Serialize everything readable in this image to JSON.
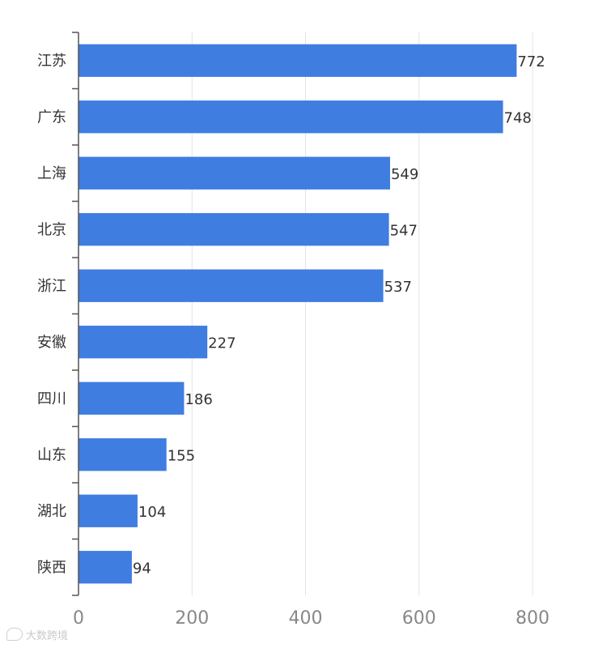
{
  "chart_data": {
    "type": "bar",
    "orientation": "horizontal",
    "categories": [
      "江苏",
      "广东",
      "上海",
      "北京",
      "浙江",
      "安徽",
      "四川",
      "山东",
      "湖北",
      "陕西"
    ],
    "values": [
      772,
      748,
      549,
      547,
      537,
      227,
      186,
      155,
      104,
      94
    ],
    "xlim": [
      0,
      800
    ],
    "x_ticks": [
      0,
      200,
      400,
      600,
      800
    ],
    "grid": "vertical",
    "data_labels": true,
    "bar_color": "#3f7de0",
    "grid_color": "#e3e3e3",
    "axis_color": "#555555"
  },
  "watermark": {
    "text": "大数跨境"
  }
}
